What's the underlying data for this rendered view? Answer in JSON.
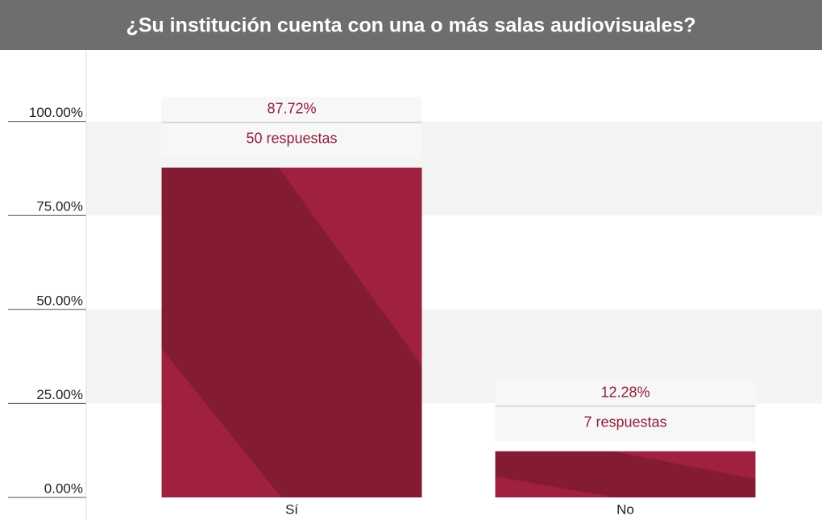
{
  "chart_data": {
    "type": "bar",
    "title": "¿Su institución cuenta con una o más salas audiovisuales?",
    "categories": [
      "Sí",
      "No"
    ],
    "values": [
      87.72,
      12.28
    ],
    "value_labels": [
      "87.72%",
      "12.28%"
    ],
    "counts": [
      50,
      7
    ],
    "count_labels": [
      "50 respuestas",
      "7 respuestas"
    ],
    "color": "#a0213f",
    "ylim": [
      0,
      119
    ],
    "yticks": [
      {
        "value": 0,
        "label": "0.00%"
      },
      {
        "value": 25,
        "label": "25.00%"
      },
      {
        "value": 50,
        "label": "50.00%"
      },
      {
        "value": 75,
        "label": "75.00%"
      },
      {
        "value": 100,
        "label": "100.00%"
      }
    ],
    "grid": true
  }
}
